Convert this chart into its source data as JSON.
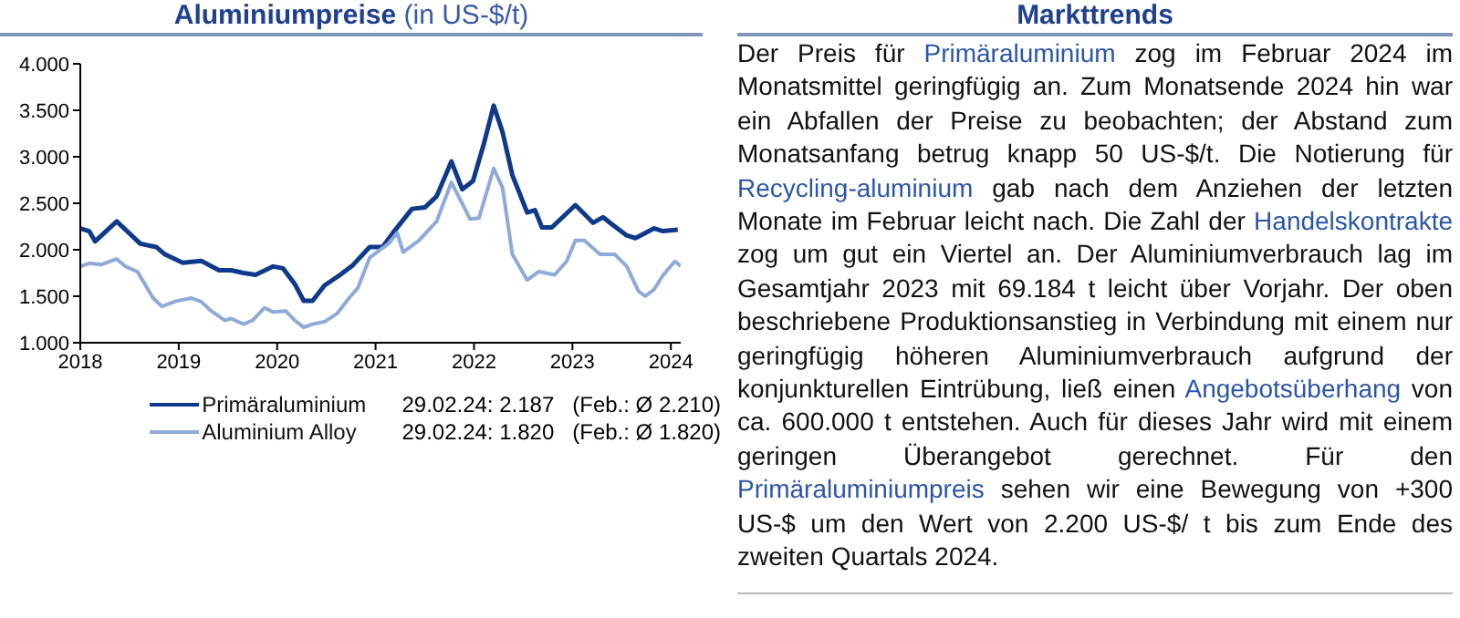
{
  "chart_data": [
    {
      "type": "line",
      "title": "Aluminiumpreise",
      "subtitle": "(in US-$/t)",
      "legend": "bottom",
      "marker": "none",
      "line_style": "solid",
      "xlim": [
        2018,
        2024.1
      ],
      "xticks": [
        2018,
        2019,
        2020,
        2021,
        2022,
        2023,
        2024
      ],
      "ylim": [
        1000,
        4000
      ],
      "yticks": [
        {
          "value": 1000,
          "label": "1.000"
        },
        {
          "value": 1500,
          "label": "1.500"
        },
        {
          "value": 2000,
          "label": "2.000"
        },
        {
          "value": 2500,
          "label": "2.500"
        },
        {
          "value": 3000,
          "label": "3.000"
        },
        {
          "value": 3500,
          "label": "3.500"
        },
        {
          "value": 4000,
          "label": "4.000"
        }
      ],
      "annotations": [
        "29.02.24: 2.187   (Feb.: Ø 2.210)",
        "29.02.24: 1.820   (Feb.: Ø 1.820)"
      ],
      "series": [
        {
          "name": "Primäraluminium",
          "color": "#0f3a8c",
          "x": [
            2018,
            2018.09,
            2018.15,
            2018.37,
            2018.61,
            2018.77,
            2018.86,
            2019.04,
            2019.23,
            2019.41,
            2019.53,
            2019.66,
            2019.78,
            2019.96,
            2020.06,
            2020.18,
            2020.27,
            2020.36,
            2020.48,
            2020.64,
            2020.76,
            2020.94,
            2021.07,
            2021.19,
            2021.37,
            2021.5,
            2021.62,
            2021.77,
            2021.88,
            2021.99,
            2022.1,
            2022.2,
            2022.29,
            2022.39,
            2022.54,
            2022.62,
            2022.69,
            2022.79,
            2023.03,
            2023.21,
            2023.31,
            2023.4,
            2023.55,
            2023.64,
            2023.83,
            2023.92,
            2024.07
          ],
          "values": [
            2230,
            2200,
            2090,
            2305,
            2065,
            2030,
            1950,
            1860,
            1880,
            1780,
            1780,
            1750,
            1730,
            1820,
            1800,
            1630,
            1450,
            1450,
            1615,
            1730,
            1825,
            2030,
            2030,
            2200,
            2440,
            2455,
            2575,
            2950,
            2650,
            2740,
            3140,
            3550,
            3265,
            2800,
            2400,
            2425,
            2240,
            2240,
            2480,
            2290,
            2350,
            2275,
            2155,
            2125,
            2230,
            2200,
            2215
          ]
        },
        {
          "name": "Aluminium Alloy",
          "color": "#8eaad8",
          "x": [
            2018,
            2018.09,
            2018.21,
            2018.37,
            2018.46,
            2018.58,
            2018.74,
            2018.83,
            2018.98,
            2019.13,
            2019.23,
            2019.32,
            2019.47,
            2019.53,
            2019.66,
            2019.75,
            2019.87,
            2019.96,
            2020.09,
            2020.18,
            2020.27,
            2020.36,
            2020.48,
            2020.61,
            2020.73,
            2020.82,
            2020.94,
            2021.13,
            2021.22,
            2021.28,
            2021.44,
            2021.62,
            2021.77,
            2021.96,
            2022.05,
            2022.2,
            2022.29,
            2022.39,
            2022.54,
            2022.66,
            2022.82,
            2022.94,
            2023.03,
            2023.12,
            2023.28,
            2023.43,
            2023.55,
            2023.67,
            2023.74,
            2023.83,
            2023.92,
            2024.04,
            2024.1
          ],
          "values": [
            1820,
            1855,
            1840,
            1900,
            1820,
            1765,
            1480,
            1390,
            1450,
            1480,
            1440,
            1350,
            1240,
            1260,
            1200,
            1240,
            1375,
            1330,
            1340,
            1240,
            1165,
            1200,
            1225,
            1315,
            1480,
            1590,
            1915,
            2065,
            2180,
            1975,
            2100,
            2305,
            2725,
            2330,
            2340,
            2875,
            2665,
            1950,
            1675,
            1765,
            1730,
            1875,
            2100,
            2100,
            1950,
            1950,
            1825,
            1555,
            1500,
            1575,
            1725,
            1875,
            1825
          ]
        }
      ]
    },
    {
      "type": "other",
      "title": "Markttrends",
      "annotations": [
        "Der Preis für ",
        "Primäraluminium",
        " zog im Februar 2024 im Monatsmittel geringfügig an. Zum Monatsende 2024 hin war ein Abfallen der Preise zu beobachten; der Abstand zum Monatsanfang betrug knapp 50 US-$/t. Die Notierung für ",
        "Recycling-aluminium",
        " gab nach dem Anziehen der letzten Monate im Februar leicht nach. Die Zahl der ",
        "Handelskontrakte",
        " zog um gut ein Viertel an. Der Aluminiumverbrauch lag im Gesamtjahr 2023 mit 69.184 t leicht über Vorjahr. Der oben beschriebene Produktionsanstieg in Verbindung mit einem nur geringfügig höheren Aluminiumverbrauch aufgrund der konjunkturellen Eintrübung, ließ einen ",
        "Angebotsüberhang",
        " von ca. 600.000 t entstehen. Auch für dieses Jahr wird mit einem geringen Überangebot gerechnet. Für den ",
        "Primäraluminiumpreis",
        " sehen wir eine Bewegung von +300 US-$ um den Wert von 2.200 US-$/ t bis zum Ende des zweiten Quartals 2024."
      ]
    }
  ]
}
